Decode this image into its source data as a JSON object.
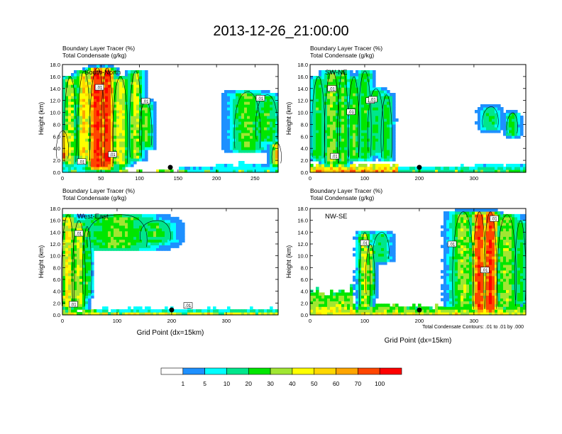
{
  "figure": {
    "title": "2013-12-26_21:00:00"
  },
  "colorbar": {
    "colors": [
      "#ffffff",
      "#1e90ff",
      "#00ffff",
      "#00e68c",
      "#00e600",
      "#a0e632",
      "#ffff00",
      "#ffd700",
      "#ffa500",
      "#ff4500",
      "#ff0000"
    ],
    "labels": [
      "1",
      "5",
      "10",
      "20",
      "30",
      "40",
      "50",
      "60",
      "70",
      "100"
    ]
  },
  "chart_data": [
    {
      "type": "heatmap",
      "id": "south-north",
      "title_line1": "Boundary Layer Tracer   (%)",
      "title_line2": "Total Condensate   (g/kg)",
      "panel_label": "South-North",
      "ylabel": "Height (km)",
      "xlabel": "",
      "xlim": [
        0,
        280
      ],
      "ylim": [
        0,
        18
      ],
      "xticks": [
        "0",
        "50",
        "100",
        "150",
        "200",
        "250"
      ],
      "xtick_values": [
        0,
        50,
        100,
        150,
        200,
        250
      ],
      "yticks": [
        "0.0",
        "2.0",
        "4.0",
        "6.0",
        "8.0",
        "10.0",
        "12.0",
        "14.0",
        "16.0",
        "18.0"
      ],
      "marker_x": 140,
      "contour_labels": [
        ".01",
        ".01",
        ".01",
        ".01",
        ".01"
      ],
      "contour_label_pos": [
        [
          25,
          1.8
        ],
        [
          65,
          3.0
        ],
        [
          108,
          11.9
        ],
        [
          257,
          12.4
        ],
        [
          48,
          14.2
        ]
      ],
      "columns": [
        [
          0,
          1.8,
          7,
          8,
          70
        ],
        [
          10,
          1.2,
          16,
          8,
          40
        ],
        [
          28,
          1.5,
          17,
          8,
          55
        ],
        [
          45,
          0.5,
          17.5,
          10,
          100
        ],
        [
          58,
          0.5,
          17.5,
          8,
          100
        ],
        [
          75,
          1.0,
          16,
          10,
          45
        ],
        [
          95,
          2,
          17,
          8,
          40
        ],
        [
          108,
          4,
          12,
          8,
          30
        ],
        [
          240,
          3.5,
          13.5,
          18,
          30
        ],
        [
          265,
          5,
          13,
          15,
          25
        ],
        [
          278,
          1,
          5,
          6,
          55
        ]
      ],
      "layers": [
        [
          0,
          30,
          3,
          0.5,
          0.6,
          10
        ],
        [
          30,
          80,
          6,
          1,
          1.5,
          20
        ],
        [
          150,
          200,
          1.0,
          0.2,
          0.5,
          8
        ],
        [
          200,
          280,
          1.4,
          0.3,
          0.6,
          10
        ],
        [
          0,
          280,
          0.2,
          0.1,
          0.1,
          60
        ]
      ]
    },
    {
      "type": "heatmap",
      "id": "sw-ne",
      "title_line1": "Boundary Layer Tracer   (%)",
      "title_line2": "Total Condensate   (g/kg)",
      "panel_label": "SW-NE",
      "ylabel": "Height (km)",
      "xlabel": "",
      "xlim": [
        0,
        395
      ],
      "ylim": [
        0,
        18
      ],
      "xticks": [
        "0",
        "100",
        "200",
        "300"
      ],
      "xtick_values": [
        0,
        100,
        200,
        300
      ],
      "yticks": [
        "0.0",
        "2.0",
        "4.0",
        "6.0",
        "8.0",
        "10.0",
        "12.0",
        "14.0",
        "16.0",
        "18.0"
      ],
      "marker_x": 200,
      "contour_labels": [
        ".01",
        ".01",
        ".01",
        ".01",
        ".01"
      ],
      "contour_label_pos": [
        [
          40,
          14.0
        ],
        [
          75,
          10.1
        ],
        [
          110,
          12.0
        ],
        [
          45,
          2.7
        ],
        [
          115,
          12.2
        ]
      ],
      "columns": [
        [
          15,
          2,
          16,
          12,
          25
        ],
        [
          40,
          1,
          17,
          14,
          35
        ],
        [
          60,
          1,
          17,
          10,
          30
        ],
        [
          80,
          2,
          16,
          10,
          30
        ],
        [
          100,
          2,
          17,
          12,
          25
        ],
        [
          120,
          3,
          14,
          15,
          20
        ],
        [
          140,
          2,
          13,
          10,
          25
        ],
        [
          330,
          7,
          11,
          15,
          20
        ],
        [
          370,
          6,
          10,
          10,
          25
        ]
      ],
      "layers": [
        [
          0,
          160,
          1.2,
          0.4,
          0.6,
          70
        ],
        [
          160,
          395,
          1.0,
          0.2,
          0.4,
          15
        ],
        [
          300,
          395,
          1.4,
          0.3,
          0.6,
          10
        ],
        [
          0,
          395,
          0.2,
          0.1,
          0.1,
          60
        ]
      ]
    },
    {
      "type": "heatmap",
      "id": "west-east",
      "title_line1": "Boundary Layer Tracer   (%)",
      "title_line2": "Total Condensate   (g/kg)",
      "panel_label": "West-East",
      "ylabel": "Height (km)",
      "xlabel": "Grid Point (dx=15km)",
      "xlim": [
        0,
        395
      ],
      "ylim": [
        0,
        18
      ],
      "xticks": [
        "0",
        "100",
        "200",
        "300"
      ],
      "xtick_values": [
        0,
        100,
        200,
        300
      ],
      "yticks": [
        "0.0",
        "2.0",
        "4.0",
        "6.0",
        "8.0",
        "10.0",
        "12.0",
        "14.0",
        "16.0",
        "18.0"
      ],
      "marker_x": 200,
      "contour_labels": [
        ".01",
        ".01",
        ".01"
      ],
      "contour_label_pos": [
        [
          30,
          13.8
        ],
        [
          20,
          1.8
        ],
        [
          230,
          1.6
        ]
      ],
      "columns": [
        [
          10,
          1,
          17,
          12,
          50
        ],
        [
          30,
          1,
          16,
          12,
          40
        ],
        [
          45,
          3,
          15,
          8,
          25
        ],
        [
          100,
          11,
          17,
          60,
          30
        ],
        [
          170,
          12,
          16,
          30,
          25
        ]
      ],
      "layers": [
        [
          0,
          60,
          1.0,
          0.5,
          1,
          40
        ],
        [
          60,
          395,
          1.0,
          0.3,
          0.5,
          15
        ],
        [
          0,
          395,
          0.3,
          0.1,
          0.2,
          70
        ]
      ]
    },
    {
      "type": "heatmap",
      "id": "nw-se",
      "title_line1": "Boundary Layer Tracer   (%)",
      "title_line2": "Total Condensate   (g/kg)",
      "panel_label": "NW-SE",
      "ylabel": "Height (km)",
      "xlabel": "Grid Point (dx=15km)",
      "xlim": [
        0,
        395
      ],
      "ylim": [
        0,
        18
      ],
      "xticks": [
        "0",
        "100",
        "200",
        "300"
      ],
      "xtick_values": [
        0,
        100,
        200,
        300
      ],
      "yticks": [
        "0.0",
        "2.0",
        "4.0",
        "6.0",
        "8.0",
        "10.0",
        "12.0",
        "14.0",
        "16.0",
        "18.0"
      ],
      "marker_x": 200,
      "contour_labels": [
        ".01",
        ".01",
        ".01",
        ".01"
      ],
      "contour_label_pos": [
        [
          100,
          12.2
        ],
        [
          260,
          12.0
        ],
        [
          320,
          7.6
        ],
        [
          337,
          16.3
        ]
      ],
      "columns": [
        [
          100,
          1,
          14,
          10,
          40
        ],
        [
          110,
          3,
          12,
          8,
          35
        ],
        [
          130,
          9,
          14,
          15,
          20
        ],
        [
          280,
          1,
          17.5,
          20,
          35
        ],
        [
          310,
          0.5,
          17.5,
          12,
          90
        ],
        [
          330,
          0.5,
          17.5,
          12,
          100
        ],
        [
          360,
          1,
          17,
          18,
          35
        ],
        [
          385,
          2,
          16,
          10,
          25
        ]
      ],
      "layers": [
        [
          0,
          80,
          4,
          1,
          1.5,
          45
        ],
        [
          0,
          395,
          1.5,
          0.4,
          0.7,
          45
        ],
        [
          0,
          395,
          0.3,
          0.1,
          0.2,
          70
        ]
      ]
    }
  ],
  "footnote": "Total Condensate Contours: .01 to .01 by .000"
}
